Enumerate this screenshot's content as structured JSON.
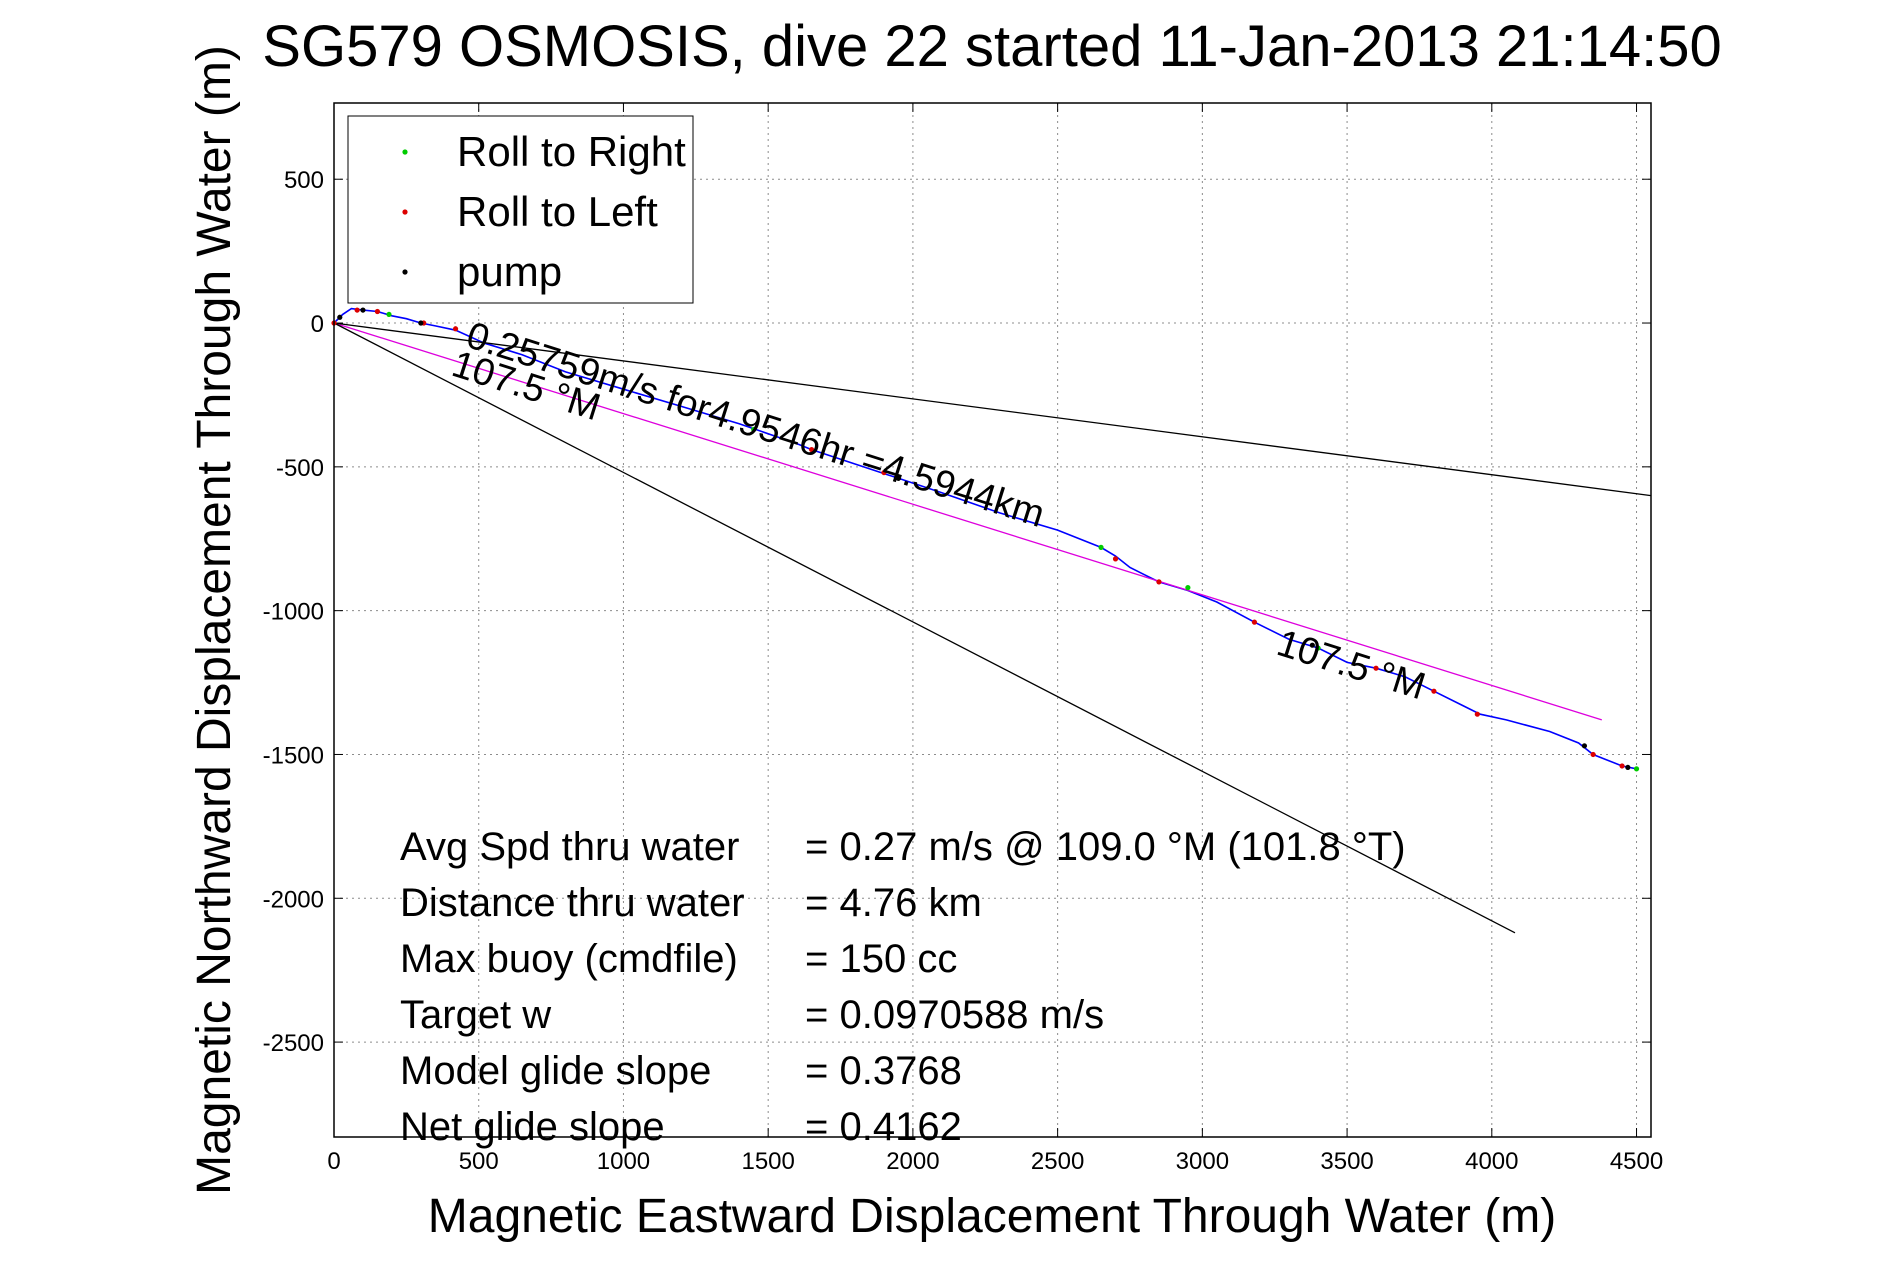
{
  "chart_data": {
    "type": "line",
    "title": "SG579 OSMOSIS, dive 22 started 11-Jan-2013 21:14:50",
    "xlabel": "Magnetic Eastward Displacement Through Water (m)",
    "ylabel": "Magnetic Northward Displacement Through Water (m)",
    "xlim": [
      0,
      4550
    ],
    "ylim": [
      -2830,
      765
    ],
    "xticks": [
      0,
      500,
      1000,
      1500,
      2000,
      2500,
      3000,
      3500,
      4000,
      4500
    ],
    "yticks": [
      500,
      0,
      -500,
      -1000,
      -1500,
      -2000,
      -2500
    ],
    "grid": true,
    "legend_position": "top-left",
    "legend": [
      {
        "label": "Roll to Right",
        "color": "#00cc00"
      },
      {
        "label": "Roll to Left",
        "color": "#dd0000"
      },
      {
        "label": "pump",
        "color": "#000000"
      }
    ],
    "series": [
      {
        "role": "track",
        "color": "#0000ff",
        "points": [
          [
            0,
            0
          ],
          [
            30,
            30
          ],
          [
            60,
            50
          ],
          [
            100,
            45
          ],
          [
            150,
            40
          ],
          [
            200,
            25
          ],
          [
            250,
            15
          ],
          [
            300,
            0
          ],
          [
            350,
            -10
          ],
          [
            420,
            -25
          ],
          [
            520,
            -70
          ],
          [
            650,
            -110
          ],
          [
            800,
            -170
          ],
          [
            1000,
            -230
          ],
          [
            1200,
            -290
          ],
          [
            1400,
            -350
          ],
          [
            1600,
            -420
          ],
          [
            1650,
            -440
          ],
          [
            1800,
            -490
          ],
          [
            1950,
            -540
          ],
          [
            2100,
            -590
          ],
          [
            2300,
            -660
          ],
          [
            2500,
            -720
          ],
          [
            2650,
            -780
          ],
          [
            2700,
            -810
          ],
          [
            2750,
            -850
          ],
          [
            2850,
            -900
          ],
          [
            2950,
            -930
          ],
          [
            3050,
            -970
          ],
          [
            3180,
            -1040
          ],
          [
            3300,
            -1100
          ],
          [
            3400,
            -1130
          ],
          [
            3500,
            -1180
          ],
          [
            3600,
            -1200
          ],
          [
            3700,
            -1230
          ],
          [
            3800,
            -1280
          ],
          [
            3900,
            -1330
          ],
          [
            3960,
            -1360
          ],
          [
            4050,
            -1380
          ],
          [
            4200,
            -1420
          ],
          [
            4300,
            -1460
          ],
          [
            4350,
            -1500
          ],
          [
            4400,
            -1520
          ],
          [
            4450,
            -1540
          ],
          [
            4500,
            -1550
          ]
        ]
      },
      {
        "role": "average-vector",
        "color": "#dd00dd",
        "points": [
          [
            0,
            0
          ],
          [
            4380,
            -1380
          ]
        ]
      },
      {
        "role": "heading-line",
        "color": "#000000",
        "points": [
          [
            0,
            0
          ],
          [
            4550,
            -600
          ]
        ]
      },
      {
        "role": "heading-line",
        "color": "#000000",
        "points": [
          [
            0,
            0
          ],
          [
            4080,
            -2120
          ]
        ]
      }
    ],
    "markers": [
      {
        "type": "roll-right",
        "color": "#00cc00",
        "points": [
          [
            190,
            30
          ],
          [
            1450,
            -370
          ],
          [
            2650,
            -780
          ],
          [
            2950,
            -920
          ],
          [
            3400,
            -1130
          ],
          [
            4500,
            -1550
          ]
        ]
      },
      {
        "type": "roll-left",
        "color": "#dd0000",
        "points": [
          [
            0,
            0
          ],
          [
            80,
            45
          ],
          [
            150,
            40
          ],
          [
            310,
            0
          ],
          [
            420,
            -20
          ],
          [
            1650,
            -440
          ],
          [
            1900,
            -520
          ],
          [
            2700,
            -820
          ],
          [
            2850,
            -900
          ],
          [
            3180,
            -1040
          ],
          [
            3600,
            -1200
          ],
          [
            3800,
            -1280
          ],
          [
            3950,
            -1360
          ],
          [
            4350,
            -1500
          ],
          [
            4450,
            -1540
          ]
        ]
      },
      {
        "type": "pump",
        "color": "#000000",
        "points": [
          [
            20,
            20
          ],
          [
            100,
            45
          ],
          [
            300,
            0
          ],
          [
            1950,
            -540
          ],
          [
            3380,
            -1120
          ],
          [
            4320,
            -1470
          ],
          [
            4470,
            -1545
          ]
        ]
      }
    ],
    "annotations": [
      {
        "text": "0.25759m/s for4.9546hr =4.5944km",
        "x": 450,
        "y": -80,
        "rotation_deg": 17.5
      },
      {
        "text": "107.5 °M",
        "x": 400,
        "y": -180,
        "rotation_deg": 17.5
      },
      {
        "text": "107.5 °M",
        "x": 3250,
        "y": -1150,
        "rotation_deg": 17.5
      }
    ],
    "stats": [
      {
        "label": "Avg Spd thru water",
        "value": "=  0.27 m/s @ 109.0 °M (101.8 °T)"
      },
      {
        "label": "Distance thru water",
        "value": "=  4.76 km"
      },
      {
        "label": "Max buoy (cmdfile)",
        "value": "= 150 cc"
      },
      {
        "label": "Target w",
        "value": "= 0.0970588 m/s"
      },
      {
        "label": "Model glide slope",
        "value": "= 0.3768"
      },
      {
        "label": "Net glide slope",
        "value": "= 0.4162"
      }
    ]
  }
}
